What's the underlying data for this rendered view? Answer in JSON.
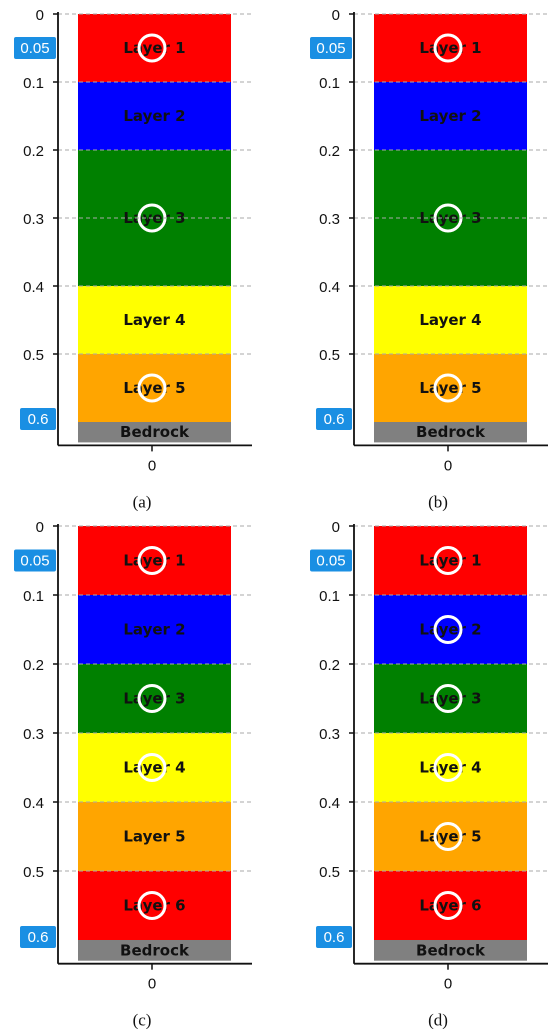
{
  "panels": [
    {
      "caption": "(a)",
      "x_tick": "0",
      "y_ticks": [
        "0",
        "0.1",
        "0.2",
        "0.3",
        "0.4",
        "0.5"
      ],
      "badges": [
        "0.05",
        "0.6"
      ],
      "layers": [
        {
          "label": "Layer 1",
          "top": 0.0,
          "bottom": 0.1,
          "color": "#ff0000",
          "circle": true
        },
        {
          "label": "Layer 2",
          "top": 0.1,
          "bottom": 0.2,
          "color": "#0000ff",
          "circle": false
        },
        {
          "label": "Layer 3",
          "top": 0.2,
          "bottom": 0.4,
          "color": "#008000",
          "circle": true
        },
        {
          "label": "Layer 4",
          "top": 0.4,
          "bottom": 0.5,
          "color": "#ffff00",
          "circle": false
        },
        {
          "label": "Layer 5",
          "top": 0.5,
          "bottom": 0.6,
          "color": "#ffa500",
          "circle": true
        },
        {
          "label": "Bedrock",
          "top": 0.6,
          "bottom": 0.63,
          "color": "#808080",
          "circle": false
        }
      ]
    },
    {
      "caption": "(b)",
      "x_tick": "0",
      "y_ticks": [
        "0",
        "0.1",
        "0.2",
        "0.3",
        "0.4",
        "0.5"
      ],
      "badges": [
        "0.05",
        "0.6"
      ],
      "layers": [
        {
          "label": "Layer 1",
          "top": 0.0,
          "bottom": 0.1,
          "color": "#ff0000",
          "circle": true
        },
        {
          "label": "Layer 2",
          "top": 0.1,
          "bottom": 0.2,
          "color": "#0000ff",
          "circle": false
        },
        {
          "label": "Layer 3",
          "top": 0.2,
          "bottom": 0.4,
          "color": "#008000",
          "circle": true
        },
        {
          "label": "Layer 4",
          "top": 0.4,
          "bottom": 0.5,
          "color": "#ffff00",
          "circle": false
        },
        {
          "label": "Layer 5",
          "top": 0.5,
          "bottom": 0.6,
          "color": "#ffa500",
          "circle": true
        },
        {
          "label": "Bedrock",
          "top": 0.6,
          "bottom": 0.63,
          "color": "#808080",
          "circle": false
        }
      ]
    },
    {
      "caption": "(c)",
      "x_tick": "0",
      "y_ticks": [
        "0",
        "0.1",
        "0.2",
        "0.3",
        "0.4",
        "0.5"
      ],
      "badges": [
        "0.05",
        "0.6"
      ],
      "layers": [
        {
          "label": "Layer 1",
          "top": 0.0,
          "bottom": 0.1,
          "color": "#ff0000",
          "circle": true
        },
        {
          "label": "Layer 2",
          "top": 0.1,
          "bottom": 0.2,
          "color": "#0000ff",
          "circle": false
        },
        {
          "label": "Layer 3",
          "top": 0.2,
          "bottom": 0.3,
          "color": "#008000",
          "circle": true
        },
        {
          "label": "Layer 4",
          "top": 0.3,
          "bottom": 0.4,
          "color": "#ffff00",
          "circle": true
        },
        {
          "label": "Layer 5",
          "top": 0.4,
          "bottom": 0.5,
          "color": "#ffa500",
          "circle": false
        },
        {
          "label": "Layer 6",
          "top": 0.5,
          "bottom": 0.6,
          "color": "#ff0000",
          "circle": true
        },
        {
          "label": "Bedrock",
          "top": 0.6,
          "bottom": 0.63,
          "color": "#808080",
          "circle": false
        }
      ]
    },
    {
      "caption": "(d)",
      "x_tick": "0",
      "y_ticks": [
        "0",
        "0.1",
        "0.2",
        "0.3",
        "0.4",
        "0.5"
      ],
      "badges": [
        "0.05",
        "0.6"
      ],
      "layers": [
        {
          "label": "Layer 1",
          "top": 0.0,
          "bottom": 0.1,
          "color": "#ff0000",
          "circle": true
        },
        {
          "label": "Layer 2",
          "top": 0.1,
          "bottom": 0.2,
          "color": "#0000ff",
          "circle": true
        },
        {
          "label": "Layer 3",
          "top": 0.2,
          "bottom": 0.3,
          "color": "#008000",
          "circle": true
        },
        {
          "label": "Layer 4",
          "top": 0.3,
          "bottom": 0.4,
          "color": "#ffff00",
          "circle": true
        },
        {
          "label": "Layer 5",
          "top": 0.4,
          "bottom": 0.5,
          "color": "#ffa500",
          "circle": true
        },
        {
          "label": "Layer 6",
          "top": 0.5,
          "bottom": 0.6,
          "color": "#ff0000",
          "circle": true
        },
        {
          "label": "Bedrock",
          "top": 0.6,
          "bottom": 0.63,
          "color": "#808080",
          "circle": false
        }
      ]
    }
  ],
  "colors": {
    "badge": "#1a8fe3",
    "circle_stroke": "#ffffff",
    "gridline": "#aaaaaa",
    "axis": "#111111"
  }
}
